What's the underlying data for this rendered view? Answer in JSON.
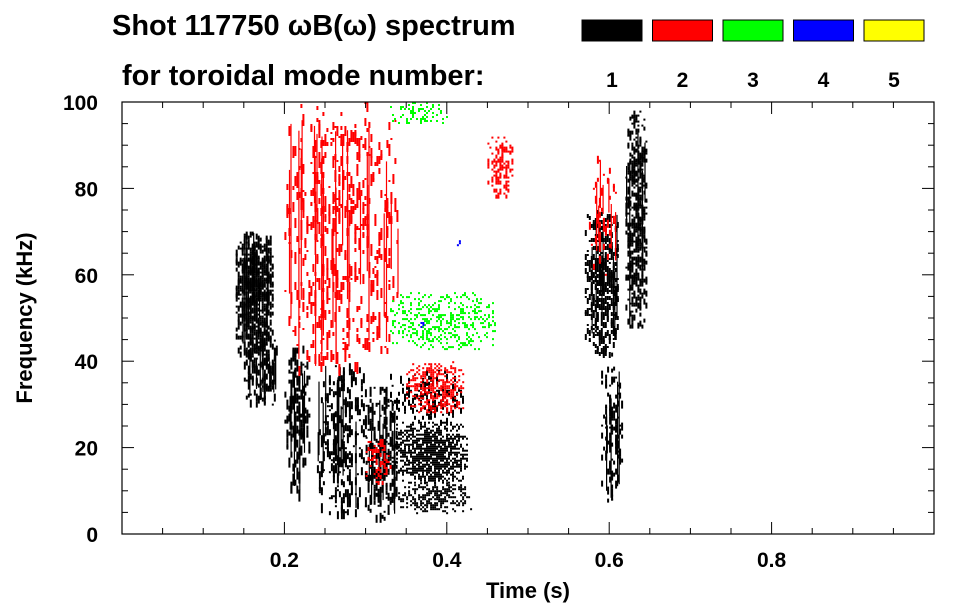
{
  "chart_data": {
    "type": "spectrogram",
    "title_line1": "Shot 117750 ωB(ω) spectrum",
    "title_line2": "for toroidal mode number:",
    "xlabel": "Time (s)",
    "ylabel": "Frequency (kHz)",
    "xlim": [
      0.0,
      1.0
    ],
    "ylim": [
      0,
      100
    ],
    "x_ticks": [
      0.2,
      0.4,
      0.6,
      0.8
    ],
    "x_tick_labels": [
      "0.2",
      "0.4",
      "0.6",
      "0.8"
    ],
    "y_ticks": [
      0,
      20,
      40,
      60,
      80,
      100
    ],
    "y_tick_labels": [
      "0",
      "20",
      "40",
      "60",
      "80",
      "100"
    ],
    "legend": [
      {
        "mode": "1",
        "color": "#000000"
      },
      {
        "mode": "2",
        "color": "#ff0000"
      },
      {
        "mode": "3",
        "color": "#00ff00"
      },
      {
        "mode": "4",
        "color": "#0000ff"
      },
      {
        "mode": "5",
        "color": "#ffff00"
      }
    ],
    "regions": [
      {
        "mode": 1,
        "t": [
          0.14,
          0.185
        ],
        "f": [
          42,
          70
        ],
        "density": 0.85,
        "stretch": 3,
        "streaks": true
      },
      {
        "mode": 1,
        "t": [
          0.15,
          0.19
        ],
        "f": [
          30,
          45
        ],
        "density": 0.35,
        "stretch": 4,
        "streaks": true
      },
      {
        "mode": 1,
        "t": [
          0.2,
          0.23
        ],
        "f": [
          10,
          45
        ],
        "density": 0.25,
        "stretch": 6,
        "streaks": true
      },
      {
        "mode": 1,
        "t": [
          0.24,
          0.3
        ],
        "f": [
          5,
          40
        ],
        "density": 0.2,
        "stretch": 5,
        "streaks": true
      },
      {
        "mode": 1,
        "t": [
          0.3,
          0.34
        ],
        "f": [
          3,
          35
        ],
        "density": 0.3,
        "stretch": 5,
        "streaks": true
      },
      {
        "mode": 1,
        "t": [
          0.335,
          0.425
        ],
        "f": [
          12,
          26
        ],
        "density": 0.9,
        "stretch": 1
      },
      {
        "mode": 1,
        "t": [
          0.34,
          0.43
        ],
        "f": [
          5,
          12
        ],
        "density": 0.6,
        "stretch": 1
      },
      {
        "mode": 1,
        "t": [
          0.33,
          0.42
        ],
        "f": [
          26,
          38
        ],
        "density": 0.2,
        "stretch": 3
      },
      {
        "mode": 1,
        "t": [
          0.57,
          0.61
        ],
        "f": [
          42,
          75
        ],
        "density": 0.55,
        "stretch": 3,
        "streaks": true
      },
      {
        "mode": 1,
        "t": [
          0.59,
          0.615
        ],
        "f": [
          8,
          42
        ],
        "density": 0.25,
        "stretch": 4,
        "streaks": true
      },
      {
        "mode": 1,
        "t": [
          0.62,
          0.645
        ],
        "f": [
          48,
          98
        ],
        "density": 0.55,
        "stretch": 3,
        "streaks": true
      },
      {
        "mode": 2,
        "t": [
          0.35,
          0.42
        ],
        "f": [
          28,
          40
        ],
        "density": 0.65,
        "stretch": 1
      },
      {
        "mode": 2,
        "t": [
          0.2,
          0.34
        ],
        "f": [
          38,
          100
        ],
        "density": 0.1,
        "stretch": 6,
        "streaks": true
      },
      {
        "mode": 2,
        "t": [
          0.45,
          0.48
        ],
        "f": [
          78,
          92
        ],
        "density": 0.45,
        "stretch": 2
      },
      {
        "mode": 2,
        "t": [
          0.3,
          0.33
        ],
        "f": [
          12,
          22
        ],
        "density": 0.35,
        "stretch": 2
      },
      {
        "mode": 2,
        "t": [
          0.575,
          0.61
        ],
        "f": [
          60,
          88
        ],
        "density": 0.08,
        "stretch": 4,
        "streaks": true
      },
      {
        "mode": 3,
        "t": [
          0.33,
          0.46
        ],
        "f": [
          43,
          56
        ],
        "density": 0.4,
        "stretch": 1
      },
      {
        "mode": 3,
        "t": [
          0.33,
          0.4
        ],
        "f": [
          95,
          100
        ],
        "density": 0.3,
        "stretch": 1
      },
      {
        "mode": 4,
        "t": [
          0.365,
          0.37
        ],
        "f": [
          48,
          50
        ],
        "density": 0.5,
        "stretch": 1
      },
      {
        "mode": 4,
        "t": [
          0.41,
          0.42
        ],
        "f": [
          66,
          68
        ],
        "density": 0.5,
        "stretch": 1
      }
    ]
  }
}
